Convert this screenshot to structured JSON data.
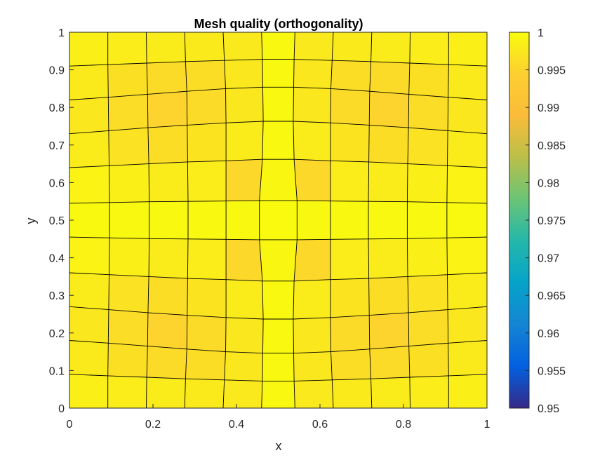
{
  "chart_data": {
    "type": "heatmap",
    "title": "Mesh quality (orthogonality)",
    "xlabel": "x",
    "ylabel": "y",
    "xlim": [
      0,
      1
    ],
    "ylim": [
      0,
      1
    ],
    "x_ticks": [
      "0",
      "0.2",
      "0.4",
      "0.6",
      "0.8",
      "1"
    ],
    "y_ticks": [
      "0",
      "0.1",
      "0.2",
      "0.3",
      "0.4",
      "0.5",
      "0.6",
      "0.7",
      "0.8",
      "0.9",
      "1"
    ],
    "colorbar": {
      "colormap": "parula",
      "range": [
        0.95,
        1
      ],
      "ticks": [
        "0.95",
        "0.955",
        "0.96",
        "0.965",
        "0.97",
        "0.975",
        "0.98",
        "0.985",
        "0.99",
        "0.995",
        "1"
      ]
    },
    "grid": {
      "rows": 11,
      "cols": 11
    },
    "x_nodes": [
      [
        0,
        0.092,
        0.184,
        0.276,
        0.368,
        0.46,
        0.54,
        0.632,
        0.724,
        0.816,
        0.908,
        1
      ],
      [
        0,
        0.092,
        0.185,
        0.278,
        0.371,
        0.462,
        0.538,
        0.629,
        0.722,
        0.815,
        0.908,
        1
      ],
      [
        0,
        0.093,
        0.187,
        0.281,
        0.374,
        0.463,
        0.537,
        0.626,
        0.719,
        0.813,
        0.907,
        1
      ],
      [
        0,
        0.094,
        0.188,
        0.282,
        0.375,
        0.464,
        0.536,
        0.625,
        0.718,
        0.812,
        0.906,
        1
      ],
      [
        0,
        0.095,
        0.19,
        0.283,
        0.375,
        0.462,
        0.538,
        0.625,
        0.717,
        0.81,
        0.905,
        1
      ],
      [
        0,
        0.096,
        0.191,
        0.284,
        0.375,
        0.455,
        0.545,
        0.625,
        0.716,
        0.809,
        0.904,
        1
      ],
      [
        0,
        0.096,
        0.191,
        0.284,
        0.375,
        0.455,
        0.545,
        0.625,
        0.716,
        0.809,
        0.904,
        1
      ],
      [
        0,
        0.095,
        0.19,
        0.283,
        0.375,
        0.462,
        0.538,
        0.625,
        0.717,
        0.81,
        0.905,
        1
      ],
      [
        0,
        0.094,
        0.188,
        0.282,
        0.375,
        0.464,
        0.536,
        0.625,
        0.718,
        0.812,
        0.906,
        1
      ],
      [
        0,
        0.093,
        0.187,
        0.281,
        0.374,
        0.463,
        0.537,
        0.626,
        0.719,
        0.813,
        0.907,
        1
      ],
      [
        0,
        0.092,
        0.185,
        0.278,
        0.371,
        0.462,
        0.538,
        0.629,
        0.722,
        0.815,
        0.908,
        1
      ],
      [
        0,
        0.092,
        0.184,
        0.276,
        0.368,
        0.46,
        0.54,
        0.632,
        0.724,
        0.816,
        0.908,
        1
      ]
    ],
    "y_nodes": [
      [
        0,
        0,
        0,
        0,
        0,
        0,
        0,
        0,
        0,
        0,
        0,
        0
      ],
      [
        0.09,
        0.086,
        0.082,
        0.078,
        0.075,
        0.072,
        0.072,
        0.075,
        0.078,
        0.082,
        0.086,
        0.09
      ],
      [
        0.18,
        0.173,
        0.165,
        0.157,
        0.15,
        0.146,
        0.146,
        0.15,
        0.157,
        0.165,
        0.173,
        0.18
      ],
      [
        0.27,
        0.262,
        0.254,
        0.247,
        0.241,
        0.237,
        0.237,
        0.241,
        0.247,
        0.254,
        0.262,
        0.27
      ],
      [
        0.36,
        0.355,
        0.35,
        0.345,
        0.342,
        0.338,
        0.338,
        0.342,
        0.345,
        0.35,
        0.355,
        0.36
      ],
      [
        0.455,
        0.453,
        0.451,
        0.45,
        0.449,
        0.448,
        0.448,
        0.449,
        0.45,
        0.451,
        0.453,
        0.455
      ],
      [
        0.545,
        0.547,
        0.549,
        0.55,
        0.551,
        0.552,
        0.552,
        0.551,
        0.55,
        0.549,
        0.547,
        0.545
      ],
      [
        0.64,
        0.645,
        0.65,
        0.655,
        0.658,
        0.662,
        0.662,
        0.658,
        0.655,
        0.65,
        0.645,
        0.64
      ],
      [
        0.73,
        0.738,
        0.746,
        0.753,
        0.759,
        0.763,
        0.763,
        0.759,
        0.753,
        0.746,
        0.738,
        0.73
      ],
      [
        0.82,
        0.827,
        0.835,
        0.843,
        0.85,
        0.854,
        0.854,
        0.85,
        0.843,
        0.835,
        0.827,
        0.82
      ],
      [
        0.91,
        0.914,
        0.918,
        0.922,
        0.925,
        0.928,
        0.928,
        0.925,
        0.922,
        0.918,
        0.914,
        0.91
      ],
      [
        1,
        1,
        1,
        1,
        1,
        1,
        1,
        1,
        1,
        1,
        1,
        1
      ]
    ],
    "values": [
      [
        0.9985,
        0.9982,
        0.998,
        0.9978,
        0.9977,
        0.9997,
        0.9977,
        0.9978,
        0.998,
        0.9982,
        0.9985
      ],
      [
        0.9978,
        0.9965,
        0.9958,
        0.9962,
        0.9975,
        0.9997,
        0.9975,
        0.9962,
        0.9958,
        0.9965,
        0.9978
      ],
      [
        0.9975,
        0.996,
        0.995,
        0.9958,
        0.9975,
        0.9997,
        0.9975,
        0.9958,
        0.995,
        0.996,
        0.9975
      ],
      [
        0.998,
        0.9968,
        0.9962,
        0.997,
        0.998,
        0.9997,
        0.998,
        0.997,
        0.9962,
        0.9968,
        0.998
      ],
      [
        0.999,
        0.9985,
        0.998,
        0.9982,
        0.9955,
        0.9995,
        0.9955,
        0.9982,
        0.998,
        0.9985,
        0.999
      ],
      [
        0.9998,
        0.9997,
        0.9997,
        0.9997,
        0.9997,
        0.9999,
        0.9997,
        0.9997,
        0.9997,
        0.9997,
        0.9998
      ],
      [
        0.999,
        0.9985,
        0.998,
        0.9982,
        0.9955,
        0.9995,
        0.9955,
        0.9982,
        0.998,
        0.9985,
        0.999
      ],
      [
        0.998,
        0.9968,
        0.9962,
        0.997,
        0.998,
        0.9997,
        0.998,
        0.997,
        0.9962,
        0.9968,
        0.998
      ],
      [
        0.9975,
        0.996,
        0.995,
        0.9958,
        0.9975,
        0.9997,
        0.9975,
        0.9958,
        0.995,
        0.996,
        0.9975
      ],
      [
        0.9978,
        0.9965,
        0.9958,
        0.9962,
        0.9975,
        0.9997,
        0.9975,
        0.9962,
        0.9958,
        0.9965,
        0.9978
      ],
      [
        0.9985,
        0.9982,
        0.998,
        0.9978,
        0.9977,
        0.9997,
        0.9977,
        0.9978,
        0.998,
        0.9982,
        0.9985
      ]
    ]
  }
}
